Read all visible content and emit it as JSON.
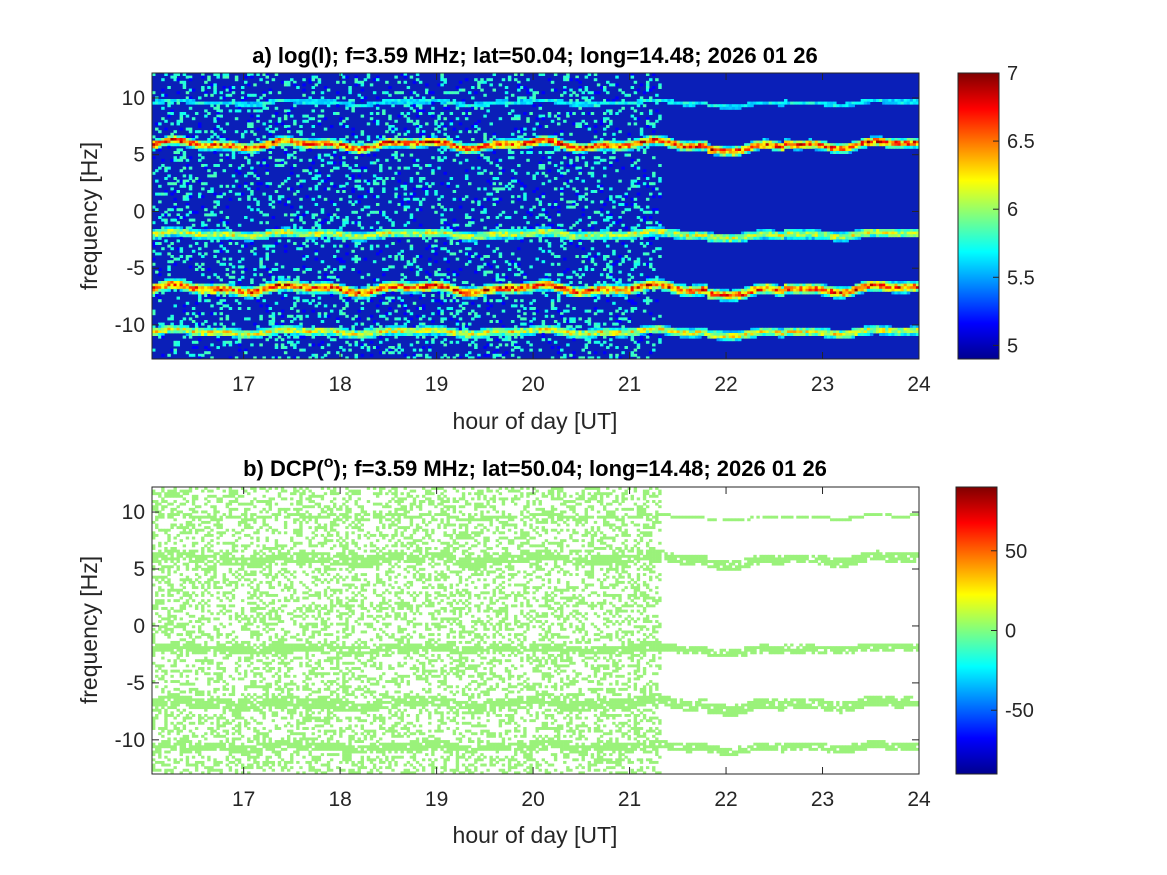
{
  "chart_data": [
    {
      "type": "heatmap",
      "panel": "a",
      "title": "a) log(I); f=3.59 MHz;  lat=50.04; long=14.48; 2026 01 26",
      "xlabel": "hour of day [UT]",
      "ylabel": "frequency [Hz]",
      "xlim": [
        16.05,
        24
      ],
      "ylim": [
        -13,
        12.2
      ],
      "xticks": [
        17,
        18,
        19,
        20,
        21,
        22,
        23,
        24
      ],
      "yticks": [
        10,
        5,
        0,
        -5,
        -10
      ],
      "colormap": "jet",
      "color_range": [
        4.9,
        7
      ],
      "colorbar_ticks": [
        7,
        6.5,
        6,
        5.5,
        5
      ],
      "data_change_hour": 21.33,
      "bands": [
        {
          "center_hz": 9.6,
          "strength": "weak"
        },
        {
          "center_hz": 5.9,
          "strength": "strong"
        },
        {
          "center_hz": -2.0,
          "strength": "medium"
        },
        {
          "center_hz": -6.8,
          "strength": "strong"
        },
        {
          "center_hz": -10.6,
          "strength": "medium"
        }
      ],
      "background_level": 5.0,
      "peak_level": 7.0
    },
    {
      "type": "heatmap",
      "panel": "b",
      "title": "b) DCP(",
      "title_superscript": "o",
      "title_rest": "); f=3.59 MHz;  lat=50.04; long=14.48; 2026 01 26",
      "xlabel": "hour of day [UT]",
      "ylabel": "frequency [Hz]",
      "xlim": [
        16.05,
        24
      ],
      "ylim": [
        -13,
        12.2
      ],
      "xticks": [
        17,
        18,
        19,
        20,
        21,
        22,
        23,
        24
      ],
      "yticks": [
        10,
        5,
        0,
        -5,
        -10
      ],
      "colormap": "jet",
      "color_range": [
        -90,
        90
      ],
      "colorbar_ticks": [
        50,
        0,
        -50
      ],
      "dominant_value": 18,
      "dominant_color": "#9af27a",
      "data_change_hour": 21.33,
      "bands": [
        {
          "center_hz": 9.6
        },
        {
          "center_hz": 5.9
        },
        {
          "center_hz": -2.0
        },
        {
          "center_hz": -6.8
        },
        {
          "center_hz": -10.6
        }
      ]
    }
  ]
}
